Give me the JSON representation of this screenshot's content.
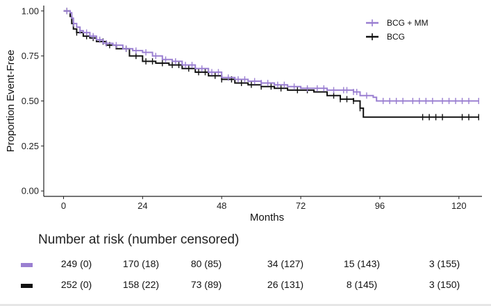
{
  "chart_data": {
    "type": "line",
    "subtype": "kaplan-meier-step",
    "xlabel": "Months",
    "ylabel": "Proportion Event-Free",
    "xlim": [
      -6,
      127
    ],
    "ylim": [
      -0.03,
      1.03
    ],
    "x_ticks": [
      0,
      24,
      48,
      72,
      96,
      120
    ],
    "y_ticks": [
      0.0,
      0.25,
      0.5,
      0.75,
      1.0
    ],
    "y_tick_labels": [
      "0.00",
      "0.25",
      "0.50",
      "0.75",
      "1.00"
    ],
    "legend_position": "top-right",
    "series": [
      {
        "name": "BCG + MM",
        "color": "#9a7fd1",
        "steps": [
          [
            0,
            1.0
          ],
          [
            1,
            1.0
          ],
          [
            2,
            0.99
          ],
          [
            2.5,
            0.96
          ],
          [
            3,
            0.93
          ],
          [
            4,
            0.91
          ],
          [
            5,
            0.89
          ],
          [
            6,
            0.88
          ],
          [
            8,
            0.86
          ],
          [
            10,
            0.84
          ],
          [
            12,
            0.82
          ],
          [
            15,
            0.81
          ],
          [
            18,
            0.79
          ],
          [
            21,
            0.78
          ],
          [
            24,
            0.77
          ],
          [
            27,
            0.75
          ],
          [
            30,
            0.73
          ],
          [
            33,
            0.72
          ],
          [
            36,
            0.7
          ],
          [
            40,
            0.68
          ],
          [
            44,
            0.66
          ],
          [
            48,
            0.63
          ],
          [
            52,
            0.62
          ],
          [
            56,
            0.61
          ],
          [
            60,
            0.6
          ],
          [
            64,
            0.59
          ],
          [
            68,
            0.58
          ],
          [
            72,
            0.57
          ],
          [
            76,
            0.57
          ],
          [
            80,
            0.56
          ],
          [
            84,
            0.56
          ],
          [
            88,
            0.55
          ],
          [
            90,
            0.53
          ],
          [
            94,
            0.52
          ],
          [
            95,
            0.5
          ],
          [
            126,
            0.5
          ]
        ],
        "censored": [
          1,
          3,
          5,
          7,
          9,
          11,
          13,
          16,
          19,
          22,
          25,
          28,
          31,
          34,
          37,
          39,
          42,
          45,
          47,
          50,
          53,
          55,
          58,
          60,
          62,
          65,
          67,
          70,
          74,
          77,
          79,
          82,
          85,
          86,
          88,
          89,
          92,
          97,
          99,
          101,
          103,
          106,
          108,
          110,
          112,
          115,
          117,
          119,
          121,
          123,
          126
        ]
      },
      {
        "name": "BCG",
        "color": "#111111",
        "steps": [
          [
            0,
            1.0
          ],
          [
            1,
            1.0
          ],
          [
            2,
            0.97
          ],
          [
            2.5,
            0.93
          ],
          [
            3,
            0.9
          ],
          [
            4,
            0.88
          ],
          [
            6,
            0.86
          ],
          [
            8,
            0.85
          ],
          [
            10,
            0.83
          ],
          [
            13,
            0.81
          ],
          [
            16,
            0.79
          ],
          [
            20,
            0.75
          ],
          [
            24,
            0.72
          ],
          [
            28,
            0.71
          ],
          [
            32,
            0.7
          ],
          [
            36,
            0.68
          ],
          [
            40,
            0.66
          ],
          [
            44,
            0.64
          ],
          [
            48,
            0.62
          ],
          [
            52,
            0.6
          ],
          [
            56,
            0.59
          ],
          [
            60,
            0.58
          ],
          [
            64,
            0.57
          ],
          [
            68,
            0.56
          ],
          [
            72,
            0.56
          ],
          [
            76,
            0.55
          ],
          [
            80,
            0.53
          ],
          [
            84,
            0.51
          ],
          [
            88,
            0.5
          ],
          [
            90,
            0.46
          ],
          [
            91,
            0.41
          ],
          [
            126,
            0.41
          ]
        ],
        "censored": [
          1,
          4,
          7,
          9,
          12,
          14,
          19,
          22,
          25,
          27,
          30,
          33,
          35,
          38,
          41,
          43,
          46,
          48,
          51,
          54,
          57,
          60,
          63,
          66,
          71,
          74,
          82,
          84,
          86,
          88,
          90,
          109,
          111,
          113,
          115,
          121,
          123,
          126
        ]
      }
    ]
  },
  "risk_table": {
    "title": "Number at risk (number censored)",
    "rows": [
      {
        "group": "BCG + MM",
        "color": "#9a7fd1",
        "cells": [
          "249 (0)",
          "170 (18)",
          "80 (85)",
          "34 (127)",
          "15 (143)",
          "3 (155)"
        ]
      },
      {
        "group": "BCG",
        "color": "#111111",
        "cells": [
          "252 (0)",
          "158 (22)",
          "73 (89)",
          "26 (131)",
          "8 (145)",
          "3 (150)"
        ]
      }
    ]
  }
}
